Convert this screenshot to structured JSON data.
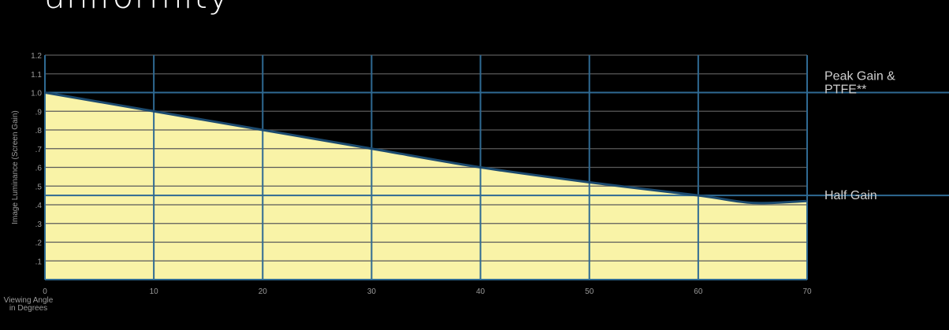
{
  "title": "uniformity",
  "chart_data": {
    "type": "area",
    "x": [
      0,
      10,
      20,
      30,
      40,
      50,
      60,
      65,
      70
    ],
    "y": [
      1.0,
      0.9,
      0.8,
      0.7,
      0.6,
      0.52,
      0.45,
      0.41,
      0.42
    ],
    "xlim": [
      0,
      70
    ],
    "ylim": [
      0,
      1.2
    ],
    "xticks": [
      "0",
      "10",
      "20",
      "30",
      "40",
      "50",
      "60",
      "70"
    ],
    "yticks": [
      ".1",
      ".2",
      ".3",
      ".4",
      ".5",
      ".6",
      ".7",
      ".8",
      ".9",
      "1.0",
      "1.1",
      "1.2"
    ],
    "xlabel_lines": [
      "Viewing Angle",
      "in Degrees"
    ],
    "ylabel": "Image Luminance (Screen Gain)",
    "grid": true,
    "reference_lines": [
      {
        "value": 1.0,
        "label_lines": [
          "Peak Gain &",
          "PTFE**"
        ]
      },
      {
        "value": 0.45,
        "label_lines": [
          "Half Gain"
        ]
      }
    ],
    "colors": {
      "fill": "#f9f3a7",
      "curve": "#1c4a6e",
      "grid": "#2f6a93",
      "grid_h": "#5a5a5a",
      "reference": "#2f6a93"
    }
  }
}
